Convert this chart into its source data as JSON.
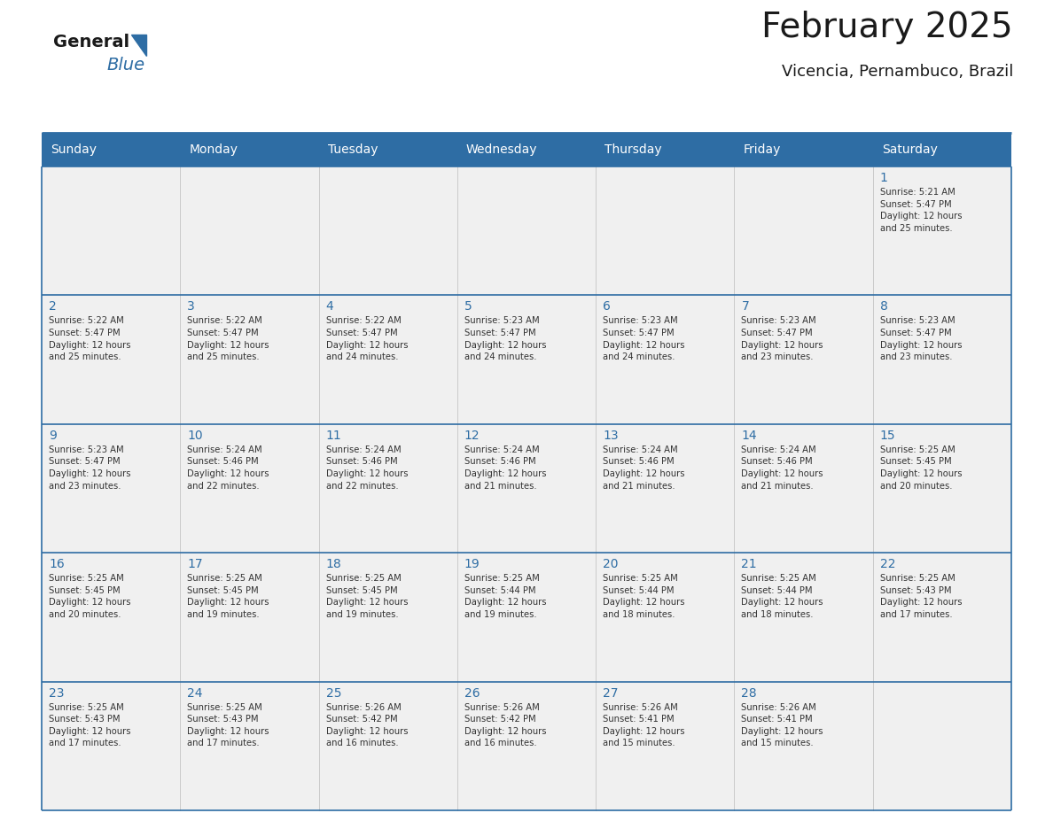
{
  "title": "February 2025",
  "subtitle": "Vicencia, Pernambuco, Brazil",
  "header_bg": "#2E6DA4",
  "header_text_color": "#FFFFFF",
  "cell_bg": "#F0F0F0",
  "cell_border_color": "#2E6DA4",
  "day_number_color": "#2E6DA4",
  "day_text_color": "#333333",
  "days_of_week": [
    "Sunday",
    "Monday",
    "Tuesday",
    "Wednesday",
    "Thursday",
    "Friday",
    "Saturday"
  ],
  "logo_color1": "#1a1a1a",
  "logo_color2": "#2E6DA4",
  "fig_width": 11.88,
  "fig_height": 9.18,
  "weeks": [
    [
      {
        "day": 0,
        "text": ""
      },
      {
        "day": 0,
        "text": ""
      },
      {
        "day": 0,
        "text": ""
      },
      {
        "day": 0,
        "text": ""
      },
      {
        "day": 0,
        "text": ""
      },
      {
        "day": 0,
        "text": ""
      },
      {
        "day": 1,
        "text": "Sunrise: 5:21 AM\nSunset: 5:47 PM\nDaylight: 12 hours\nand 25 minutes."
      }
    ],
    [
      {
        "day": 2,
        "text": "Sunrise: 5:22 AM\nSunset: 5:47 PM\nDaylight: 12 hours\nand 25 minutes."
      },
      {
        "day": 3,
        "text": "Sunrise: 5:22 AM\nSunset: 5:47 PM\nDaylight: 12 hours\nand 25 minutes."
      },
      {
        "day": 4,
        "text": "Sunrise: 5:22 AM\nSunset: 5:47 PM\nDaylight: 12 hours\nand 24 minutes."
      },
      {
        "day": 5,
        "text": "Sunrise: 5:23 AM\nSunset: 5:47 PM\nDaylight: 12 hours\nand 24 minutes."
      },
      {
        "day": 6,
        "text": "Sunrise: 5:23 AM\nSunset: 5:47 PM\nDaylight: 12 hours\nand 24 minutes."
      },
      {
        "day": 7,
        "text": "Sunrise: 5:23 AM\nSunset: 5:47 PM\nDaylight: 12 hours\nand 23 minutes."
      },
      {
        "day": 8,
        "text": "Sunrise: 5:23 AM\nSunset: 5:47 PM\nDaylight: 12 hours\nand 23 minutes."
      }
    ],
    [
      {
        "day": 9,
        "text": "Sunrise: 5:23 AM\nSunset: 5:47 PM\nDaylight: 12 hours\nand 23 minutes."
      },
      {
        "day": 10,
        "text": "Sunrise: 5:24 AM\nSunset: 5:46 PM\nDaylight: 12 hours\nand 22 minutes."
      },
      {
        "day": 11,
        "text": "Sunrise: 5:24 AM\nSunset: 5:46 PM\nDaylight: 12 hours\nand 22 minutes."
      },
      {
        "day": 12,
        "text": "Sunrise: 5:24 AM\nSunset: 5:46 PM\nDaylight: 12 hours\nand 21 minutes."
      },
      {
        "day": 13,
        "text": "Sunrise: 5:24 AM\nSunset: 5:46 PM\nDaylight: 12 hours\nand 21 minutes."
      },
      {
        "day": 14,
        "text": "Sunrise: 5:24 AM\nSunset: 5:46 PM\nDaylight: 12 hours\nand 21 minutes."
      },
      {
        "day": 15,
        "text": "Sunrise: 5:25 AM\nSunset: 5:45 PM\nDaylight: 12 hours\nand 20 minutes."
      }
    ],
    [
      {
        "day": 16,
        "text": "Sunrise: 5:25 AM\nSunset: 5:45 PM\nDaylight: 12 hours\nand 20 minutes."
      },
      {
        "day": 17,
        "text": "Sunrise: 5:25 AM\nSunset: 5:45 PM\nDaylight: 12 hours\nand 19 minutes."
      },
      {
        "day": 18,
        "text": "Sunrise: 5:25 AM\nSunset: 5:45 PM\nDaylight: 12 hours\nand 19 minutes."
      },
      {
        "day": 19,
        "text": "Sunrise: 5:25 AM\nSunset: 5:44 PM\nDaylight: 12 hours\nand 19 minutes."
      },
      {
        "day": 20,
        "text": "Sunrise: 5:25 AM\nSunset: 5:44 PM\nDaylight: 12 hours\nand 18 minutes."
      },
      {
        "day": 21,
        "text": "Sunrise: 5:25 AM\nSunset: 5:44 PM\nDaylight: 12 hours\nand 18 minutes."
      },
      {
        "day": 22,
        "text": "Sunrise: 5:25 AM\nSunset: 5:43 PM\nDaylight: 12 hours\nand 17 minutes."
      }
    ],
    [
      {
        "day": 23,
        "text": "Sunrise: 5:25 AM\nSunset: 5:43 PM\nDaylight: 12 hours\nand 17 minutes."
      },
      {
        "day": 24,
        "text": "Sunrise: 5:25 AM\nSunset: 5:43 PM\nDaylight: 12 hours\nand 17 minutes."
      },
      {
        "day": 25,
        "text": "Sunrise: 5:26 AM\nSunset: 5:42 PM\nDaylight: 12 hours\nand 16 minutes."
      },
      {
        "day": 26,
        "text": "Sunrise: 5:26 AM\nSunset: 5:42 PM\nDaylight: 12 hours\nand 16 minutes."
      },
      {
        "day": 27,
        "text": "Sunrise: 5:26 AM\nSunset: 5:41 PM\nDaylight: 12 hours\nand 15 minutes."
      },
      {
        "day": 28,
        "text": "Sunrise: 5:26 AM\nSunset: 5:41 PM\nDaylight: 12 hours\nand 15 minutes."
      },
      {
        "day": 0,
        "text": ""
      }
    ]
  ]
}
